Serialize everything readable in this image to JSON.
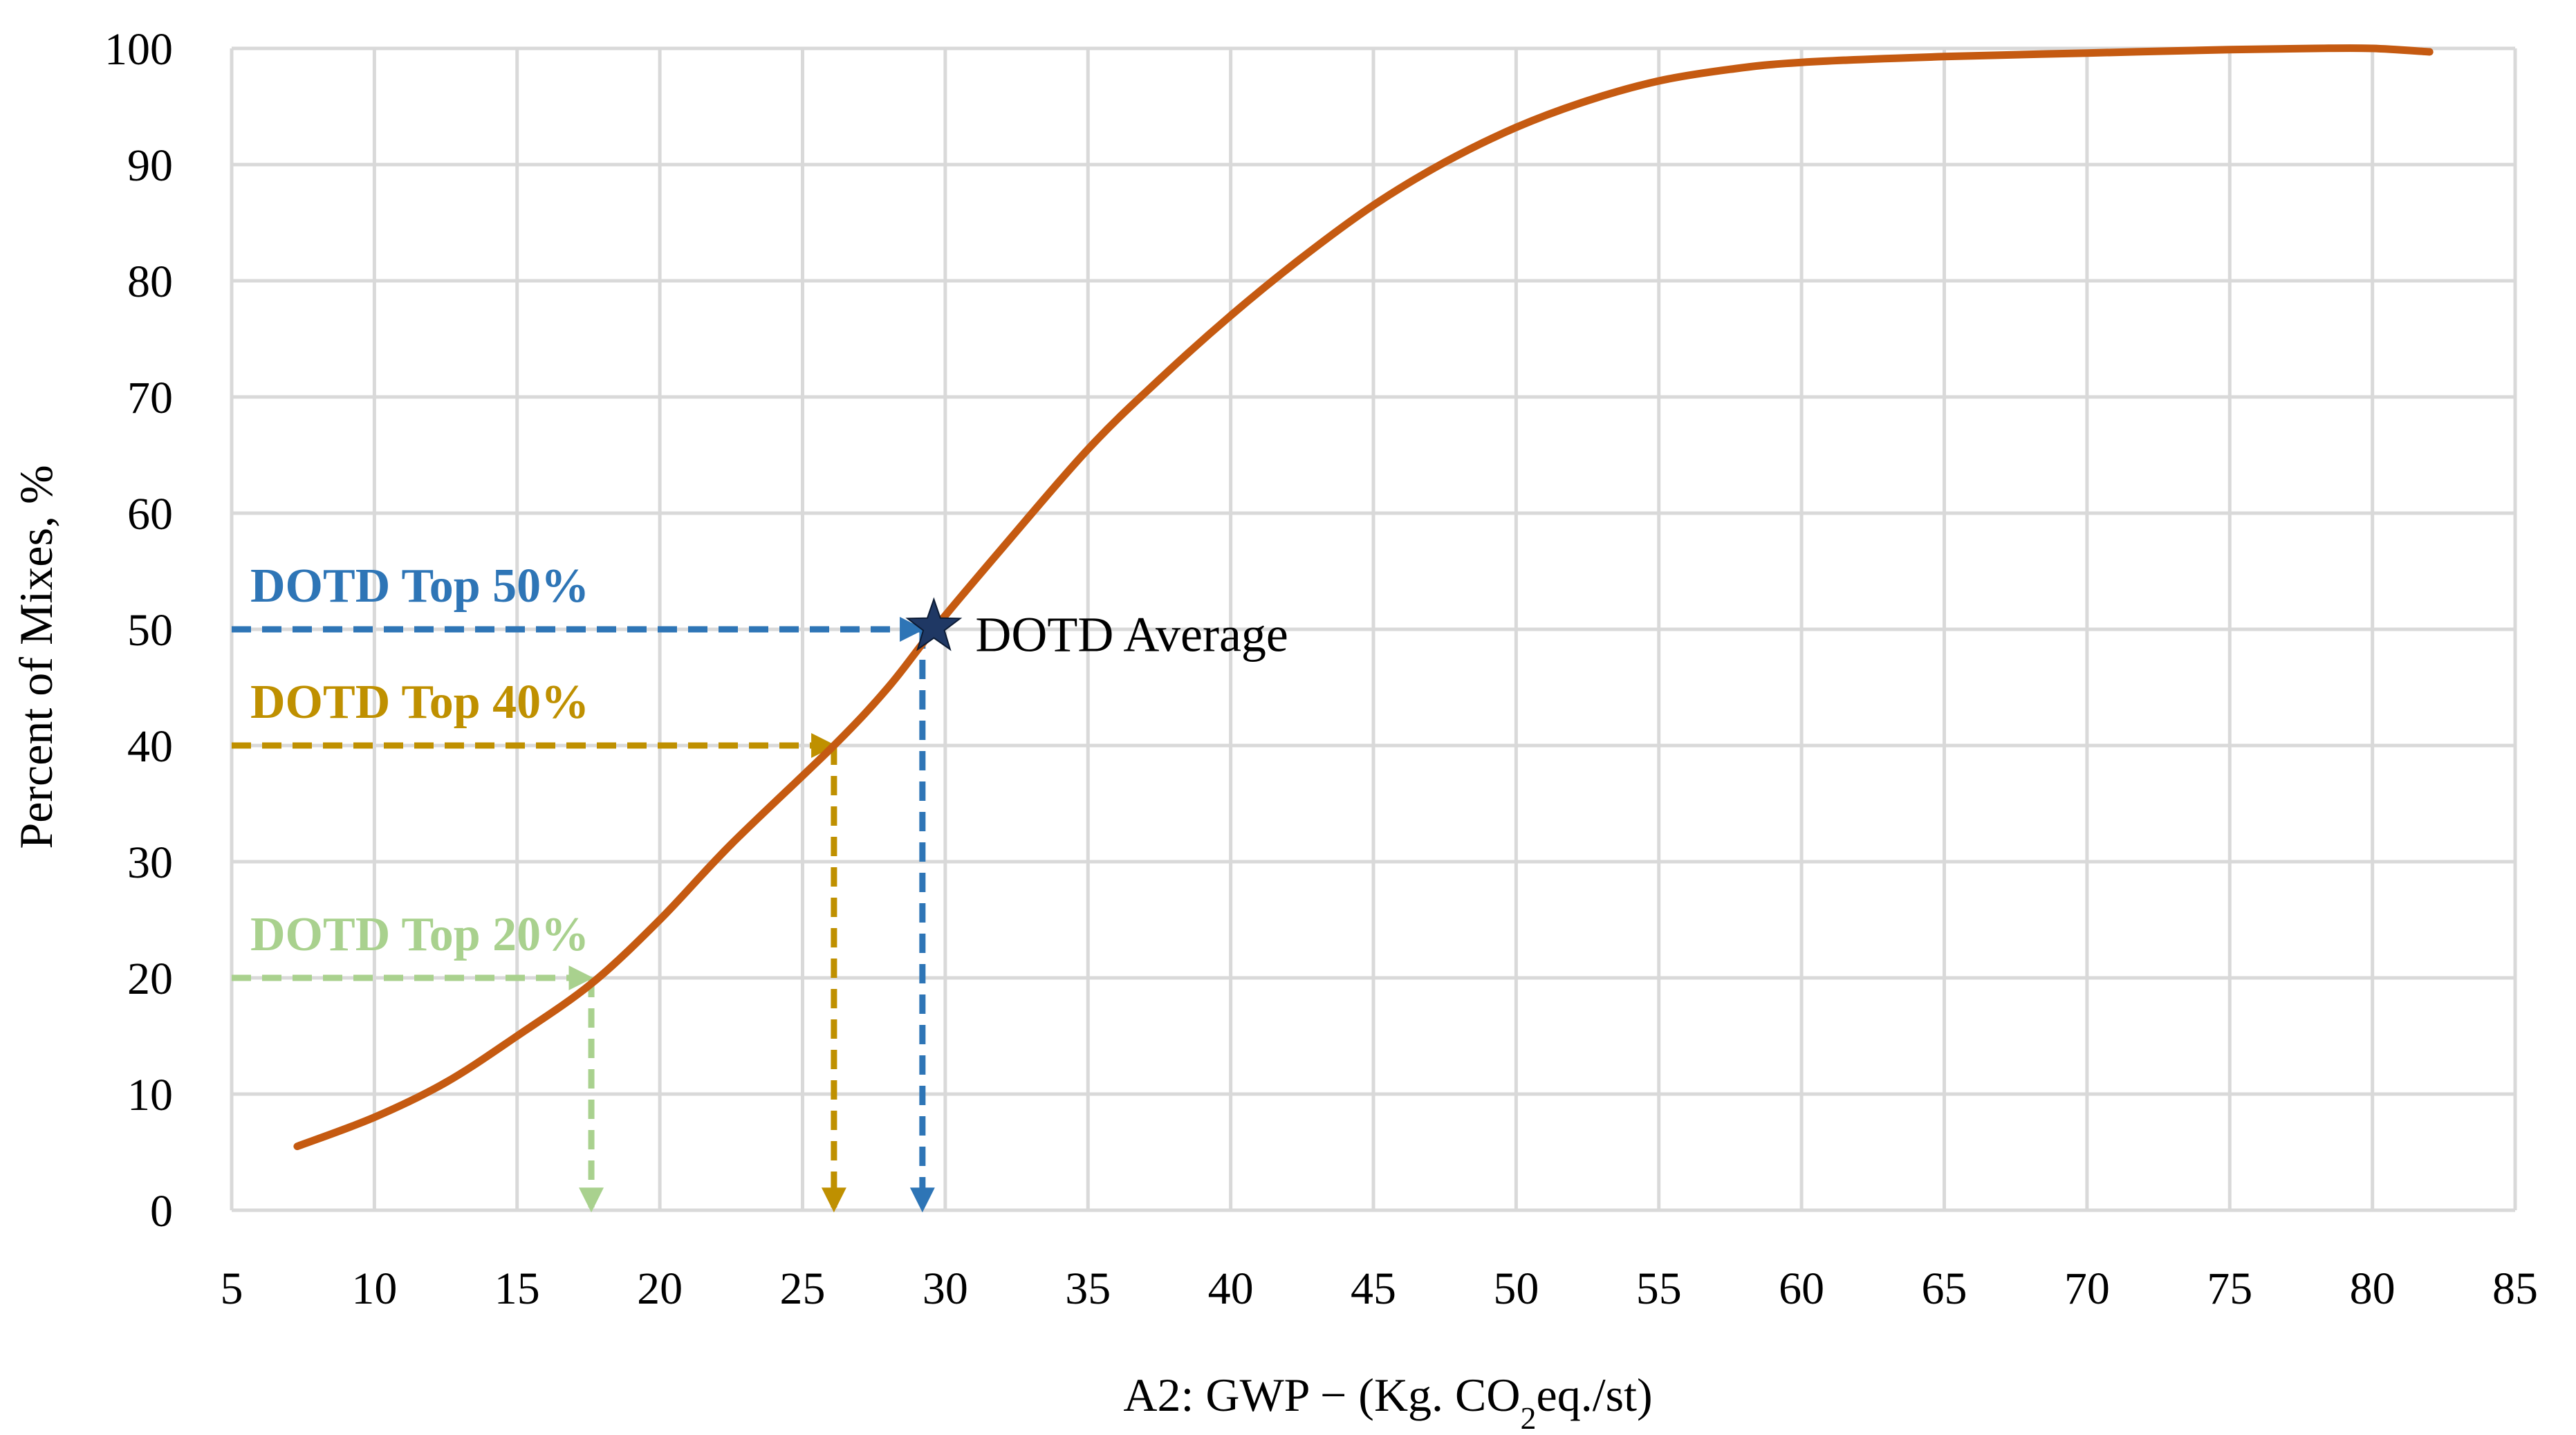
{
  "chart_data": {
    "type": "line",
    "xlabel_prefix": "A2: GWP − (Kg. CO",
    "xlabel_sub": "2",
    "xlabel_suffix": "eq./st)",
    "ylabel": "Percent of Mixes, %",
    "xlim": [
      5,
      85
    ],
    "ylim": [
      0,
      100
    ],
    "xticks": [
      5,
      10,
      15,
      20,
      25,
      30,
      35,
      40,
      45,
      50,
      55,
      60,
      65,
      70,
      75,
      80,
      85
    ],
    "yticks": [
      0,
      10,
      20,
      30,
      40,
      50,
      60,
      70,
      80,
      90,
      100
    ],
    "grid": true,
    "colors": {
      "curve": "#c55a11",
      "grid": "#d9d9d9"
    },
    "series": [
      {
        "x": [
          7.3,
          10,
          12.5,
          15,
          17.6,
          20,
          22.5,
          26.1,
          28,
          29.6,
          32,
          35,
          37.5,
          40,
          42.5,
          45,
          47.5,
          50,
          52.5,
          55,
          57.5,
          60,
          65,
          70,
          75,
          78,
          80,
          82
        ],
        "y": [
          5.5,
          8,
          11,
          15,
          19.5,
          25,
          31.5,
          40,
          45,
          50,
          57,
          65.5,
          71.5,
          77,
          82,
          86.5,
          90.2,
          93.2,
          95.5,
          97.2,
          98.2,
          98.8,
          99.3,
          99.6,
          99.9,
          100,
          100,
          99.7
        ]
      }
    ],
    "annotations": [
      {
        "label": "DOTD Top 50%",
        "x": 29.2,
        "y": 50,
        "color": "#2e75b6"
      },
      {
        "label": "DOTD Top 40%",
        "x": 26.1,
        "y": 40,
        "color": "#bf9000"
      },
      {
        "label": "DOTD Top 20%",
        "x": 17.6,
        "y": 20,
        "color": "#a9d18e"
      }
    ],
    "average_point": {
      "label": "DOTD Average",
      "x": 29.6,
      "y": 50.2,
      "color": "#1f3864"
    }
  }
}
